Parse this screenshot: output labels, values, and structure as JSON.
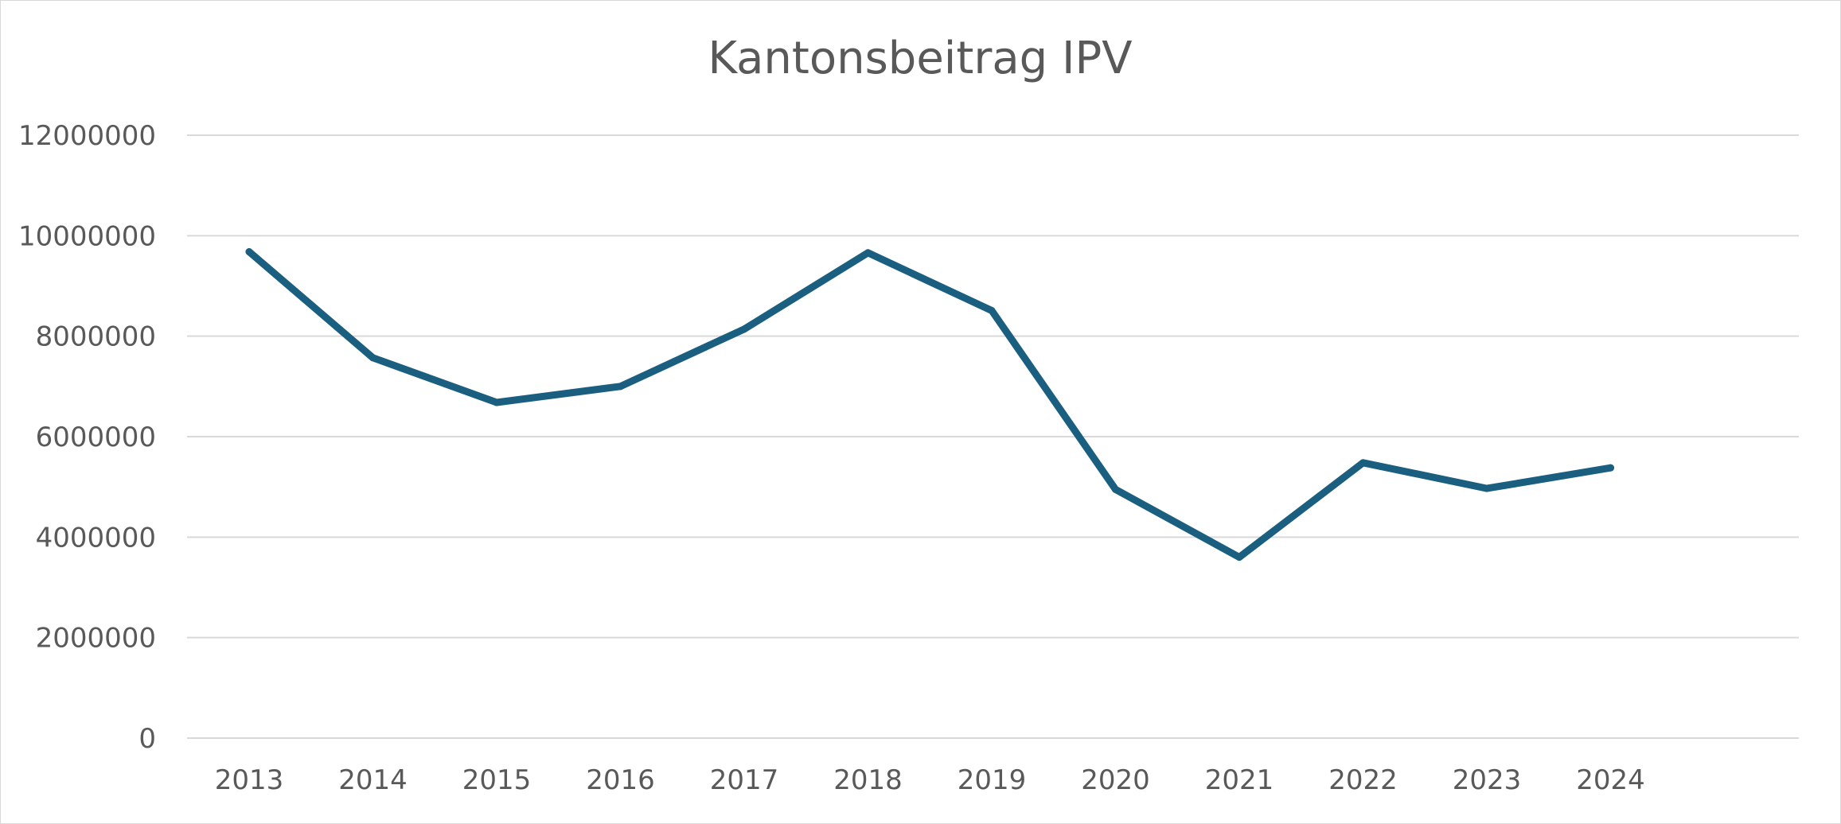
{
  "chart_data": {
    "type": "line",
    "title": "Kantonsbeitrag IPV",
    "xlabel": "",
    "ylabel": "",
    "categories": [
      "2013",
      "2014",
      "2015",
      "2016",
      "2017",
      "2018",
      "2019",
      "2020",
      "2021",
      "2022",
      "2023",
      "2024"
    ],
    "series": [
      {
        "values": [
          9680000,
          7570000,
          6680000,
          7000000,
          8140000,
          9660000,
          8510000,
          4950000,
          3600000,
          5480000,
          4970000,
          5380000
        ],
        "color": "#1b5f80"
      }
    ],
    "ylim": [
      0,
      12000000
    ],
    "yticks": [
      "0",
      "2000000",
      "4000000",
      "6000000",
      "8000000",
      "10000000",
      "12000000"
    ],
    "grid": true,
    "legend": "none",
    "colors": {
      "grid": "#d9d9d9",
      "text": "#595959",
      "line": "#1b5f80"
    }
  }
}
